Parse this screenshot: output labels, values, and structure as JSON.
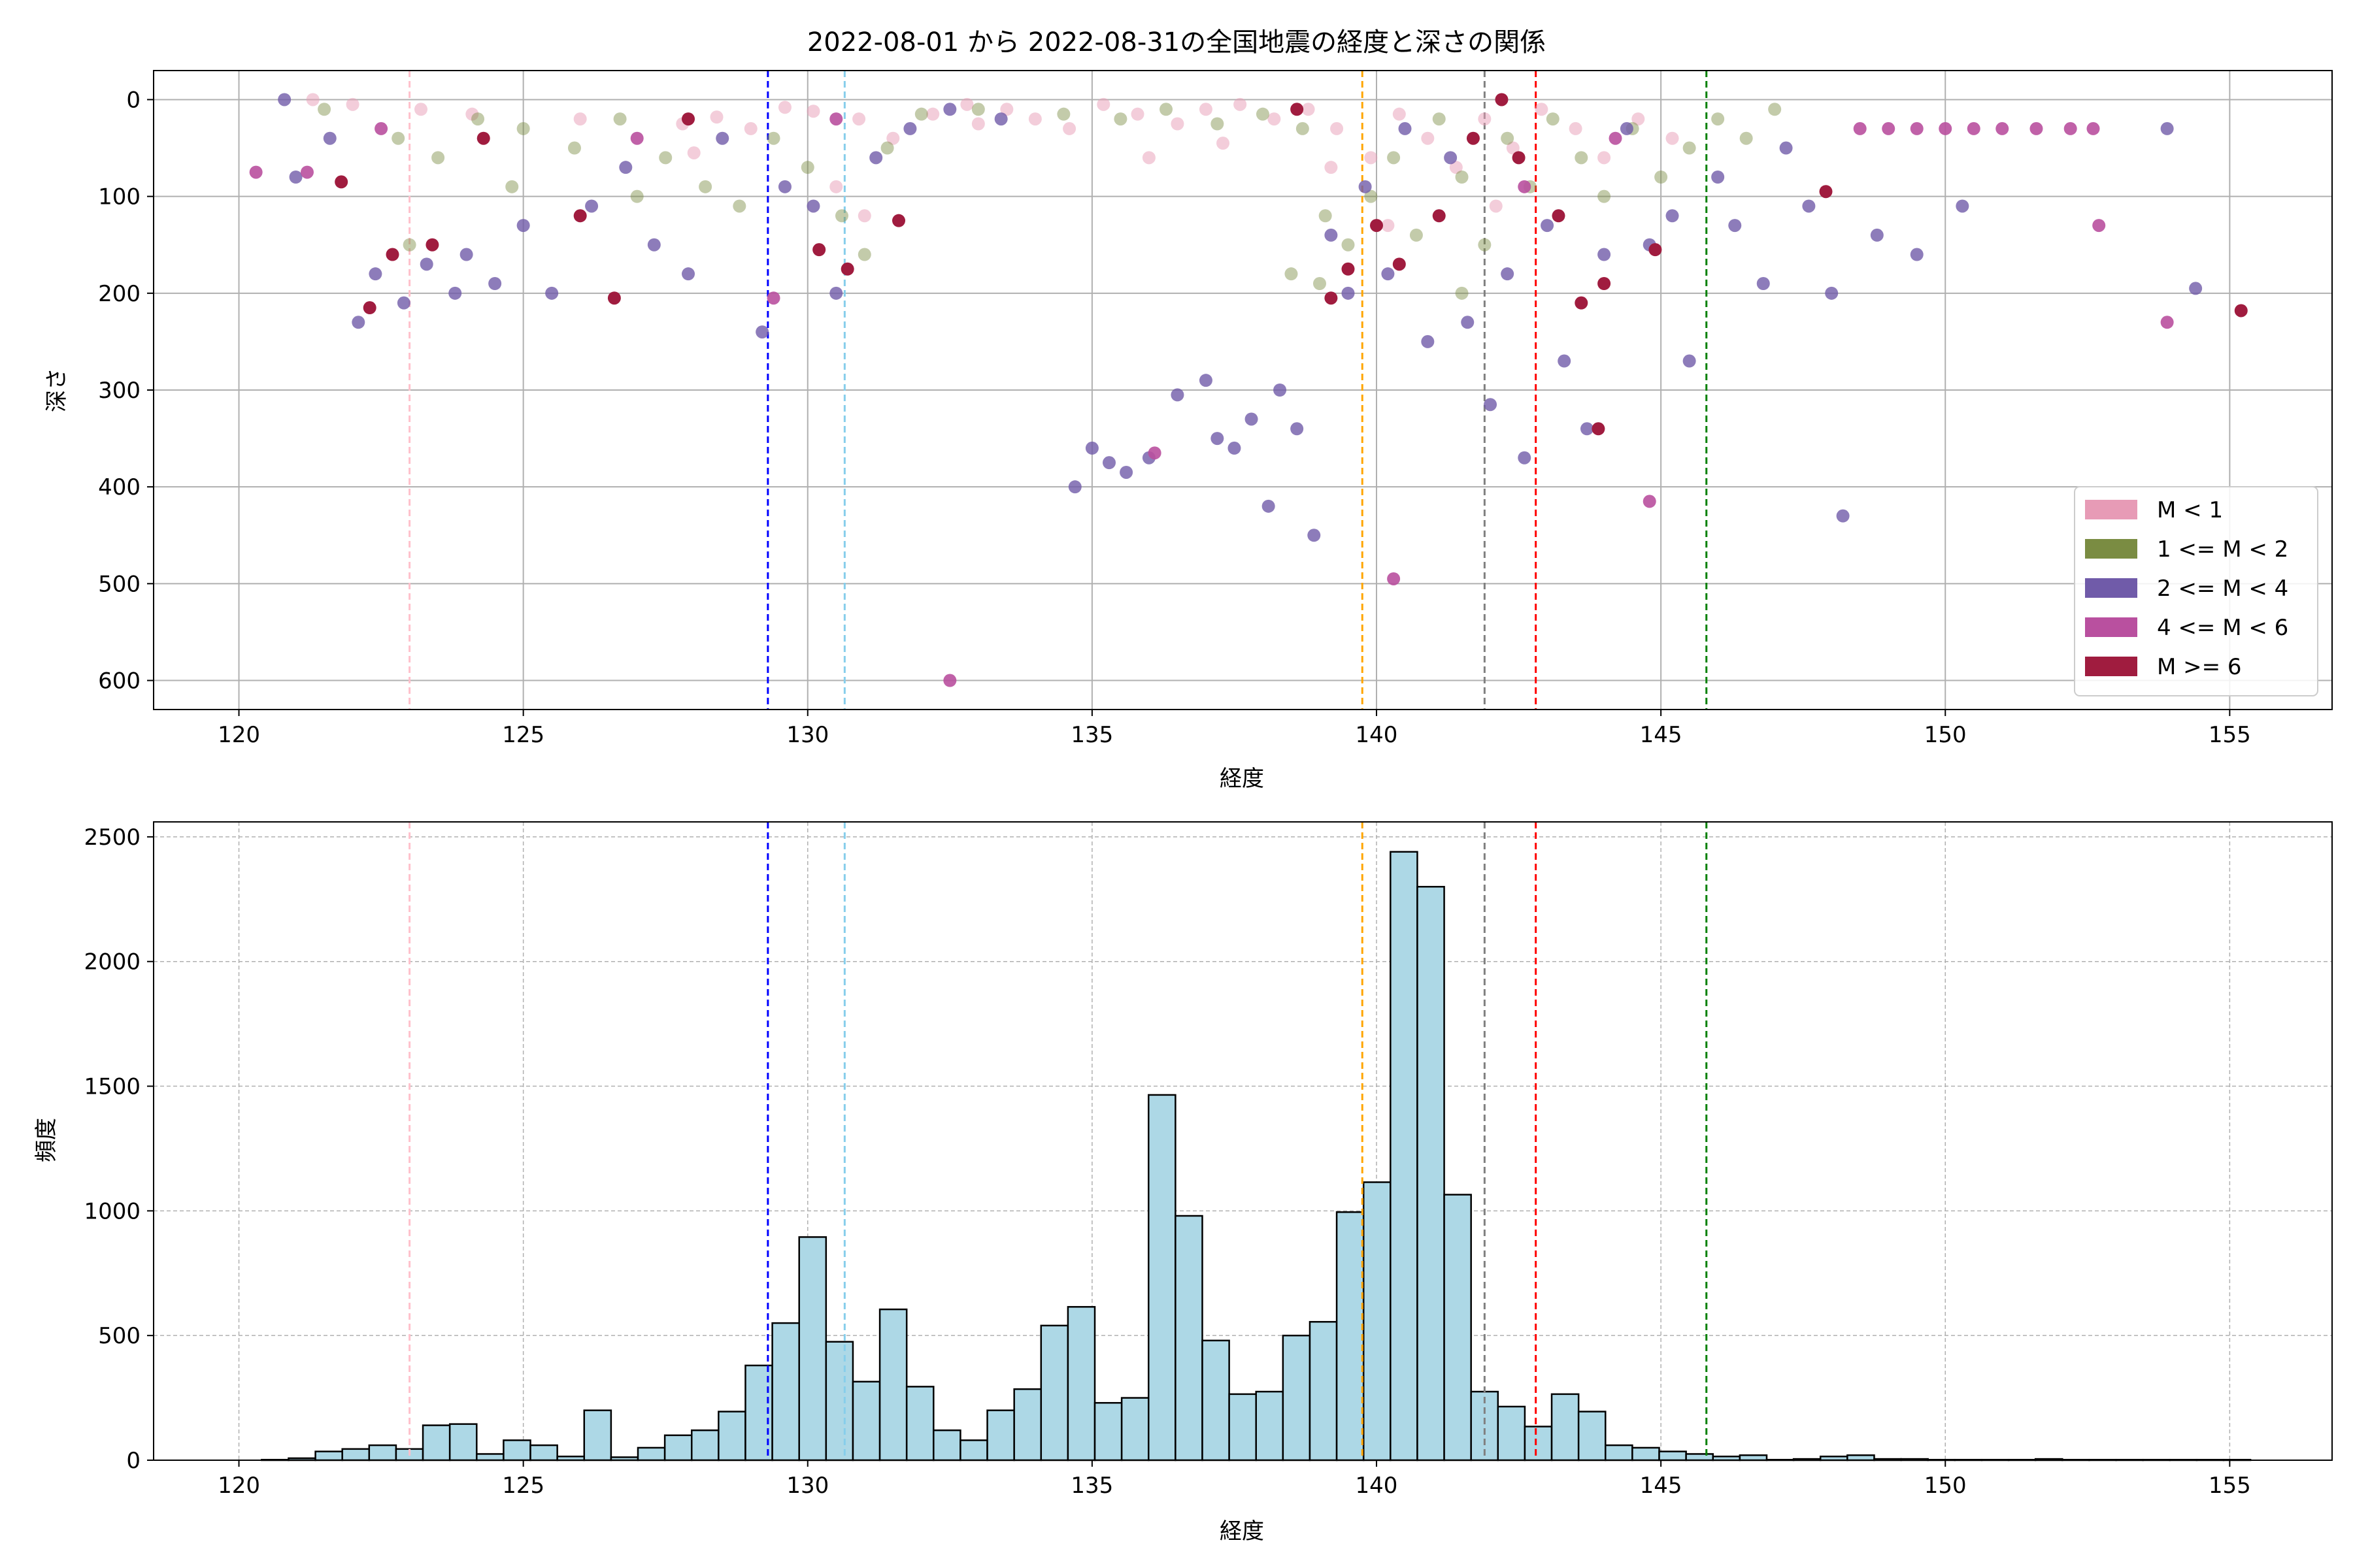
{
  "title": "2022-08-01 から 2022-08-31の全国地震の経度と深さの関係",
  "colors": {
    "m_lt1": "#e79bb6",
    "m_1_2": "#7a8c42",
    "m_2_4": "#705ba9",
    "m_4_6": "#b9509f",
    "m_ge6": "#a01c3f",
    "hist_fill": "#add8e6",
    "vline_pink": "#ffc0cb",
    "vline_blue": "#0000ff",
    "vline_skyblue": "#87ceeb",
    "vline_orange": "#ffa500",
    "vline_gray": "#808080",
    "vline_red": "#ff0000",
    "vline_green": "#008000"
  },
  "chart_data": [
    {
      "type": "scatter",
      "xlabel": "経度",
      "ylabel": "深さ",
      "xlim": [
        118.5,
        156.8
      ],
      "ylim": [
        630,
        -30
      ],
      "y_inverted": true,
      "grid": true,
      "xticks": [
        120,
        125,
        130,
        135,
        140,
        145,
        150,
        155
      ],
      "yticks": [
        0,
        100,
        200,
        300,
        400,
        500,
        600
      ],
      "legend_position": "lower-right",
      "legend": [
        {
          "label": "M < 1",
          "color_key": "m_lt1"
        },
        {
          "label": "1 <= M < 2",
          "color_key": "m_1_2"
        },
        {
          "label": "2 <= M < 4",
          "color_key": "m_2_4"
        },
        {
          "label": "4 <= M < 6",
          "color_key": "m_4_6"
        },
        {
          "label": "M >= 6",
          "color_key": "m_ge6"
        }
      ],
      "vertical_lines": [
        {
          "x": 123.0,
          "color_key": "vline_pink"
        },
        {
          "x": 129.3,
          "color_key": "vline_blue"
        },
        {
          "x": 130.65,
          "color_key": "vline_skyblue"
        },
        {
          "x": 139.75,
          "color_key": "vline_orange"
        },
        {
          "x": 141.9,
          "color_key": "vline_gray"
        },
        {
          "x": 142.8,
          "color_key": "vline_red"
        },
        {
          "x": 145.8,
          "color_key": "vline_green"
        }
      ],
      "series": [
        {
          "color_key": "m_lt1",
          "alpha": 0.5,
          "points": [
            [
              121.3,
              0
            ],
            [
              122.0,
              5
            ],
            [
              123.2,
              10
            ],
            [
              124.1,
              15
            ],
            [
              126.0,
              20
            ],
            [
              127.8,
              25
            ],
            [
              128.4,
              18
            ],
            [
              129.0,
              30
            ],
            [
              129.6,
              8
            ],
            [
              130.1,
              12
            ],
            [
              130.9,
              20
            ],
            [
              131.5,
              40
            ],
            [
              132.2,
              15
            ],
            [
              132.8,
              5
            ],
            [
              133.5,
              10
            ],
            [
              134.0,
              20
            ],
            [
              134.6,
              30
            ],
            [
              135.2,
              5
            ],
            [
              135.8,
              15
            ],
            [
              136.5,
              25
            ],
            [
              137.0,
              10
            ],
            [
              137.6,
              5
            ],
            [
              138.2,
              20
            ],
            [
              138.8,
              10
            ],
            [
              139.3,
              30
            ],
            [
              139.9,
              60
            ],
            [
              140.4,
              15
            ],
            [
              140.9,
              40
            ],
            [
              141.4,
              70
            ],
            [
              141.9,
              20
            ],
            [
              142.4,
              50
            ],
            [
              142.9,
              10
            ],
            [
              143.5,
              30
            ],
            [
              144.0,
              60
            ],
            [
              144.6,
              20
            ],
            [
              145.2,
              40
            ],
            [
              131.0,
              120
            ],
            [
              130.5,
              90
            ],
            [
              139.2,
              70
            ],
            [
              136.0,
              60
            ],
            [
              137.3,
              45
            ],
            [
              133.0,
              25
            ],
            [
              128.0,
              55
            ],
            [
              140.2,
              130
            ],
            [
              142.1,
              110
            ]
          ]
        },
        {
          "color_key": "m_1_2",
          "alpha": 0.45,
          "points": [
            [
              121.5,
              10
            ],
            [
              122.8,
              40
            ],
            [
              123.5,
              60
            ],
            [
              124.2,
              20
            ],
            [
              125.0,
              30
            ],
            [
              125.9,
              50
            ],
            [
              126.7,
              20
            ],
            [
              127.5,
              60
            ],
            [
              128.2,
              90
            ],
            [
              128.8,
              110
            ],
            [
              129.4,
              40
            ],
            [
              130.0,
              70
            ],
            [
              130.6,
              120
            ],
            [
              131.0,
              160
            ],
            [
              131.4,
              50
            ],
            [
              132.0,
              15
            ],
            [
              133.0,
              10
            ],
            [
              134.5,
              15
            ],
            [
              135.5,
              20
            ],
            [
              136.3,
              10
            ],
            [
              137.2,
              25
            ],
            [
              138.0,
              15
            ],
            [
              138.7,
              30
            ],
            [
              139.1,
              120
            ],
            [
              139.5,
              150
            ],
            [
              139.9,
              100
            ],
            [
              140.3,
              60
            ],
            [
              140.7,
              140
            ],
            [
              141.1,
              20
            ],
            [
              141.5,
              80
            ],
            [
              141.9,
              150
            ],
            [
              142.3,
              40
            ],
            [
              142.7,
              90
            ],
            [
              143.1,
              20
            ],
            [
              143.6,
              60
            ],
            [
              144.0,
              100
            ],
            [
              144.5,
              30
            ],
            [
              145.0,
              80
            ],
            [
              145.5,
              50
            ],
            [
              146.0,
              20
            ],
            [
              146.5,
              40
            ],
            [
              147.0,
              10
            ],
            [
              138.5,
              180
            ],
            [
              139.0,
              190
            ],
            [
              141.5,
              200
            ],
            [
              127.0,
              100
            ],
            [
              124.8,
              90
            ],
            [
              123.0,
              150
            ]
          ]
        },
        {
          "color_key": "m_2_4",
          "alpha": 0.8,
          "points": [
            [
              120.8,
              0
            ],
            [
              121.0,
              80
            ],
            [
              121.6,
              40
            ],
            [
              122.1,
              230
            ],
            [
              122.4,
              180
            ],
            [
              122.9,
              210
            ],
            [
              123.3,
              170
            ],
            [
              123.8,
              200
            ],
            [
              124.0,
              160
            ],
            [
              124.5,
              190
            ],
            [
              125.0,
              130
            ],
            [
              125.5,
              200
            ],
            [
              126.2,
              110
            ],
            [
              126.8,
              70
            ],
            [
              127.3,
              150
            ],
            [
              127.9,
              180
            ],
            [
              128.5,
              40
            ],
            [
              129.2,
              240
            ],
            [
              129.6,
              90
            ],
            [
              130.1,
              110
            ],
            [
              130.5,
              200
            ],
            [
              131.2,
              60
            ],
            [
              131.8,
              30
            ],
            [
              132.5,
              10
            ],
            [
              133.4,
              20
            ],
            [
              134.7,
              400
            ],
            [
              135.0,
              360
            ],
            [
              135.3,
              375
            ],
            [
              135.6,
              385
            ],
            [
              136.0,
              370
            ],
            [
              136.5,
              305
            ],
            [
              137.0,
              290
            ],
            [
              137.2,
              350
            ],
            [
              137.5,
              360
            ],
            [
              137.8,
              330
            ],
            [
              138.1,
              420
            ],
            [
              138.3,
              300
            ],
            [
              138.6,
              340
            ],
            [
              138.9,
              450
            ],
            [
              139.2,
              140
            ],
            [
              139.5,
              200
            ],
            [
              139.8,
              90
            ],
            [
              140.2,
              180
            ],
            [
              140.5,
              30
            ],
            [
              140.9,
              250
            ],
            [
              141.3,
              60
            ],
            [
              141.6,
              230
            ],
            [
              142.0,
              315
            ],
            [
              142.3,
              180
            ],
            [
              142.6,
              370
            ],
            [
              143.0,
              130
            ],
            [
              143.3,
              270
            ],
            [
              143.7,
              340
            ],
            [
              144.0,
              160
            ],
            [
              144.4,
              30
            ],
            [
              144.8,
              150
            ],
            [
              145.2,
              120
            ],
            [
              145.5,
              270
            ],
            [
              146.0,
              80
            ],
            [
              146.3,
              130
            ],
            [
              146.8,
              190
            ],
            [
              147.2,
              50
            ],
            [
              147.6,
              110
            ],
            [
              148.0,
              200
            ],
            [
              148.2,
              430
            ],
            [
              148.8,
              140
            ],
            [
              149.5,
              160
            ],
            [
              150.3,
              110
            ],
            [
              154.4,
              195
            ],
            [
              153.9,
              30
            ]
          ]
        },
        {
          "color_key": "m_4_6",
          "alpha": 0.9,
          "points": [
            [
              120.3,
              75
            ],
            [
              121.2,
              75
            ],
            [
              122.5,
              30
            ],
            [
              127.0,
              40
            ],
            [
              129.4,
              205
            ],
            [
              130.5,
              20
            ],
            [
              132.5,
              600
            ],
            [
              136.1,
              365
            ],
            [
              140.3,
              495
            ],
            [
              144.8,
              415
            ],
            [
              148.5,
              30
            ],
            [
              149.0,
              30
            ],
            [
              149.5,
              30
            ],
            [
              150.0,
              30
            ],
            [
              150.5,
              30
            ],
            [
              151.0,
              30
            ],
            [
              151.6,
              30
            ],
            [
              152.2,
              30
            ],
            [
              152.6,
              30
            ],
            [
              152.7,
              130
            ],
            [
              153.9,
              230
            ],
            [
              144.2,
              40
            ],
            [
              142.6,
              90
            ]
          ]
        },
        {
          "color_key": "m_ge6",
          "alpha": 1.0,
          "points": [
            [
              121.8,
              85
            ],
            [
              122.3,
              215
            ],
            [
              122.7,
              160
            ],
            [
              123.4,
              150
            ],
            [
              124.3,
              40
            ],
            [
              126.0,
              120
            ],
            [
              126.6,
              205
            ],
            [
              127.9,
              20
            ],
            [
              130.2,
              155
            ],
            [
              130.7,
              175
            ],
            [
              131.6,
              125
            ],
            [
              139.2,
              205
            ],
            [
              139.5,
              175
            ],
            [
              140.0,
              130
            ],
            [
              140.4,
              170
            ],
            [
              141.1,
              120
            ],
            [
              141.7,
              40
            ],
            [
              142.5,
              60
            ],
            [
              143.2,
              120
            ],
            [
              143.6,
              210
            ],
            [
              143.9,
              340
            ],
            [
              144.0,
              190
            ],
            [
              144.9,
              155
            ],
            [
              147.9,
              95
            ],
            [
              155.2,
              218
            ],
            [
              138.6,
              10
            ],
            [
              142.2,
              0
            ]
          ]
        }
      ]
    },
    {
      "type": "bar",
      "xlabel": "経度",
      "ylabel": "頻度",
      "xlim": [
        118.5,
        156.8
      ],
      "ylim": [
        0,
        2560
      ],
      "grid": true,
      "grid_style": "dashed",
      "xticks": [
        120,
        125,
        130,
        135,
        140,
        145,
        150,
        155
      ],
      "yticks": [
        0,
        500,
        1000,
        1500,
        2000,
        2500
      ],
      "bin_start": 120.4,
      "bin_width": 0.4725,
      "values": [
        2,
        8,
        35,
        45,
        60,
        45,
        140,
        145,
        25,
        80,
        60,
        15,
        200,
        12,
        50,
        100,
        120,
        195,
        380,
        550,
        895,
        475,
        315,
        605,
        295,
        120,
        80,
        200,
        285,
        540,
        615,
        230,
        250,
        1465,
        980,
        480,
        265,
        275,
        500,
        555,
        995,
        1115,
        2440,
        2300,
        1065,
        275,
        215,
        135,
        265,
        195,
        60,
        50,
        35,
        25,
        15,
        20,
        2,
        5,
        15,
        20,
        5,
        5,
        2,
        2,
        2,
        2,
        5,
        2,
        2,
        2,
        2,
        2,
        2,
        2
      ],
      "vertical_lines": [
        {
          "x": 123.0,
          "color_key": "vline_pink"
        },
        {
          "x": 129.3,
          "color_key": "vline_blue"
        },
        {
          "x": 130.65,
          "color_key": "vline_skyblue"
        },
        {
          "x": 139.75,
          "color_key": "vline_orange"
        },
        {
          "x": 141.9,
          "color_key": "vline_gray"
        },
        {
          "x": 142.8,
          "color_key": "vline_red"
        },
        {
          "x": 145.8,
          "color_key": "vline_green"
        }
      ]
    }
  ]
}
